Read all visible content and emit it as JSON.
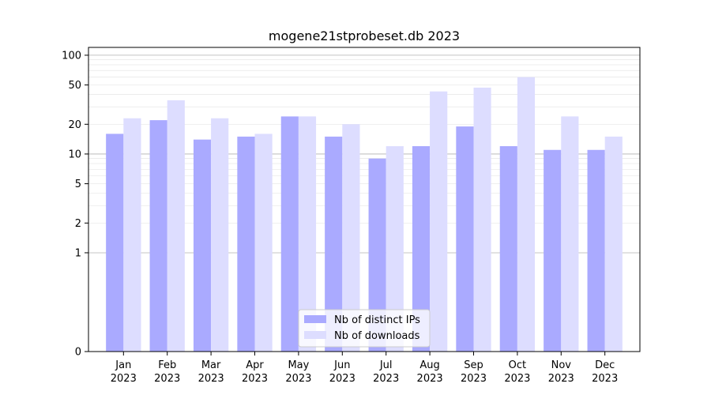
{
  "chart_data": {
    "type": "bar",
    "title": "mogene21stprobeset.db 2023",
    "xlabel": "",
    "ylabel": "",
    "yscale": "symlog",
    "ylim": [
      0,
      120
    ],
    "yticks": [
      {
        "value": 0,
        "label": "0"
      },
      {
        "value": 1,
        "label": "1"
      },
      {
        "value": 2,
        "label": "2"
      },
      {
        "value": 5,
        "label": "5"
      },
      {
        "value": 10,
        "label": "10"
      },
      {
        "value": 20,
        "label": "20"
      },
      {
        "value": 50,
        "label": "50"
      },
      {
        "value": 100,
        "label": "100"
      }
    ],
    "categories": [
      {
        "month": "Jan",
        "year": "2023"
      },
      {
        "month": "Feb",
        "year": "2023"
      },
      {
        "month": "Mar",
        "year": "2023"
      },
      {
        "month": "Apr",
        "year": "2023"
      },
      {
        "month": "May",
        "year": "2023"
      },
      {
        "month": "Jun",
        "year": "2023"
      },
      {
        "month": "Jul",
        "year": "2023"
      },
      {
        "month": "Aug",
        "year": "2023"
      },
      {
        "month": "Sep",
        "year": "2023"
      },
      {
        "month": "Oct",
        "year": "2023"
      },
      {
        "month": "Nov",
        "year": "2023"
      },
      {
        "month": "Dec",
        "year": "2023"
      }
    ],
    "series": [
      {
        "name": "Nb of distinct IPs",
        "color": "#aaaaff",
        "values": [
          16,
          22,
          14,
          15,
          24,
          15,
          9,
          12,
          19,
          12,
          11,
          11
        ]
      },
      {
        "name": "Nb of downloads",
        "color": "#ddddff",
        "values": [
          23,
          35,
          23,
          16,
          24,
          20,
          12,
          43,
          47,
          60,
          24,
          15
        ]
      }
    ],
    "legend": "bottom-center",
    "grid": true
  }
}
